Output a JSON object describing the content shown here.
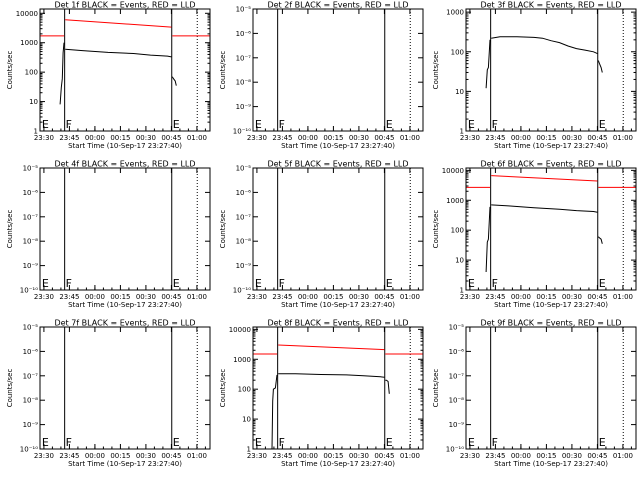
{
  "chart_data": [
    {
      "type": "line",
      "title": "Det 1f BLACK = Events, RED = LLD",
      "xlabel": "Start Time (10-Sep-17 23:27:40)",
      "ylabel": "Counts/sec",
      "x_tick_labels": [
        "23:30",
        "23:45",
        "00:00",
        "00:15",
        "00:30",
        "00:45",
        "01:00"
      ],
      "x_ticks_min": [
        2.3,
        17.3,
        32.3,
        47.3,
        62.3,
        77.3,
        92.3
      ],
      "y_scale": "log",
      "ylim": [
        1,
        14000
      ],
      "y_tick_labels": [
        "1",
        "10",
        "100",
        "1000",
        "10000"
      ],
      "y_tick_values": [
        1,
        10,
        100,
        1000,
        10000
      ],
      "xlim_min": [
        0,
        100
      ],
      "markers": [
        {
          "text": "E",
          "x_min": 0.5
        },
        {
          "text": "F",
          "x_min": 14.5
        },
        {
          "text": "E",
          "x_min": 77.5
        }
      ],
      "vlines_solid_min": [
        14.5,
        77.5
      ],
      "vlines_dotted_min": [
        92.5
      ],
      "series": [
        {
          "color": "#ff0000",
          "segments": [
            {
              "x": [
                0,
                14.2
              ],
              "y": [
                1700,
                1700
              ]
            },
            {
              "x": [
                14.8,
                77.3
              ],
              "y": [
                6000,
                3400
              ]
            },
            {
              "x": [
                77.8,
                100
              ],
              "y": [
                1700,
                1700
              ]
            }
          ]
        },
        {
          "color": "#000000",
          "segments": [
            {
              "x": [
                11.8,
                12.5,
                13.1,
                13.6,
                14.1
              ],
              "y": [
                8,
                30,
                60,
                450,
                1000
              ]
            },
            {
              "x": [
                14.8,
                25,
                40,
                55,
                65,
                75,
                77.3
              ],
              "y": [
                600,
                540,
                470,
                430,
                380,
                350,
                330
              ]
            },
            {
              "x": [
                77.8,
                78.5,
                79.5,
                80.2
              ],
              "y": [
                70,
                60,
                50,
                35
              ]
            }
          ]
        }
      ]
    },
    {
      "type": "line",
      "title": "Det 2f BLACK = Events, RED = LLD",
      "xlabel": "Start Time (10-Sep-17 23:27:40)",
      "ylabel": "Counts/sec",
      "x_tick_labels": [
        "23:30",
        "23:45",
        "00:00",
        "00:15",
        "00:30",
        "00:45",
        "01:00"
      ],
      "x_ticks_min": [
        2.3,
        17.3,
        32.3,
        47.3,
        62.3,
        77.3,
        92.3
      ],
      "y_scale": "log",
      "ylim": [
        1e-10,
        1e-05
      ],
      "y_tick_labels": [
        "10⁻¹⁰",
        "10⁻⁹",
        "10⁻⁸",
        "10⁻⁷",
        "10⁻⁶",
        "10⁻⁵"
      ],
      "y_tick_values": [
        1e-10,
        1e-09,
        1e-08,
        1e-07,
        1e-06,
        1e-05
      ],
      "xlim_min": [
        0,
        100
      ],
      "markers": [
        {
          "text": "E",
          "x_min": 0.5
        },
        {
          "text": "F",
          "x_min": 14.5
        },
        {
          "text": "E",
          "x_min": 77.5
        }
      ],
      "vlines_solid_min": [
        14.5,
        77.5
      ],
      "vlines_dotted_min": [
        92.5
      ],
      "series": []
    },
    {
      "type": "line",
      "title": "Det 3f BLACK = Events, RED = LLD",
      "xlabel": "Start Time (10-Sep-17 23:27:40)",
      "ylabel": "Counts/sec",
      "x_tick_labels": [
        "23:30",
        "23:45",
        "00:00",
        "00:15",
        "00:30",
        "00:45",
        "01:00"
      ],
      "x_ticks_min": [
        2.3,
        17.3,
        32.3,
        47.3,
        62.3,
        77.3,
        92.3
      ],
      "y_scale": "log",
      "ylim": [
        1,
        1200
      ],
      "y_tick_labels": [
        "1",
        "10",
        "100",
        "1000"
      ],
      "y_tick_values": [
        1,
        10,
        100,
        1000
      ],
      "xlim_min": [
        0,
        100
      ],
      "markers": [
        {
          "text": "E",
          "x_min": 0.5
        },
        {
          "text": "F",
          "x_min": 14.5
        },
        {
          "text": "E",
          "x_min": 77.5
        }
      ],
      "vlines_solid_min": [
        14.5,
        77.5
      ],
      "vlines_dotted_min": [
        92.5
      ],
      "series": [
        {
          "color": "#000000",
          "segments": [
            {
              "x": [
                11.8,
                12.5,
                13.2,
                14.1
              ],
              "y": [
                12,
                35,
                40,
                200
              ]
            },
            {
              "x": [
                14.8,
                20,
                30,
                40,
                45,
                50,
                55,
                60,
                65,
                70,
                75,
                77.3
              ],
              "y": [
                220,
                240,
                240,
                230,
                220,
                190,
                170,
                140,
                120,
                110,
                100,
                90
              ]
            },
            {
              "x": [
                77.8,
                78.5,
                79.5,
                80.2
              ],
              "y": [
                60,
                50,
                40,
                30
              ]
            }
          ]
        }
      ]
    },
    {
      "type": "line",
      "title": "Det 4f BLACK = Events, RED = LLD",
      "xlabel": "Start Time (10-Sep-17 23:27:40)",
      "ylabel": "Counts/sec",
      "x_tick_labels": [
        "23:30",
        "23:45",
        "00:00",
        "00:15",
        "00:30",
        "00:45",
        "01:00"
      ],
      "x_ticks_min": [
        2.3,
        17.3,
        32.3,
        47.3,
        62.3,
        77.3,
        92.3
      ],
      "y_scale": "log",
      "ylim": [
        1e-10,
        1e-05
      ],
      "y_tick_labels": [
        "10⁻¹⁰",
        "10⁻⁹",
        "10⁻⁸",
        "10⁻⁷",
        "10⁻⁶",
        "10⁻⁵"
      ],
      "y_tick_values": [
        1e-10,
        1e-09,
        1e-08,
        1e-07,
        1e-06,
        1e-05
      ],
      "xlim_min": [
        0,
        100
      ],
      "markers": [
        {
          "text": "E",
          "x_min": 0.5
        },
        {
          "text": "F",
          "x_min": 14.5
        },
        {
          "text": "E",
          "x_min": 77.5
        }
      ],
      "vlines_solid_min": [
        14.5,
        77.5
      ],
      "vlines_dotted_min": [
        92.5
      ],
      "series": []
    },
    {
      "type": "line",
      "title": "Det 5f BLACK = Events, RED = LLD",
      "xlabel": "Start Time (10-Sep-17 23:27:40)",
      "ylabel": "Counts/sec",
      "x_tick_labels": [
        "23:30",
        "23:45",
        "00:00",
        "00:15",
        "00:30",
        "00:45",
        "01:00"
      ],
      "x_ticks_min": [
        2.3,
        17.3,
        32.3,
        47.3,
        62.3,
        77.3,
        92.3
      ],
      "y_scale": "log",
      "ylim": [
        1e-10,
        1e-05
      ],
      "y_tick_labels": [
        "10⁻¹⁰",
        "10⁻⁹",
        "10⁻⁸",
        "10⁻⁷",
        "10⁻⁶",
        "10⁻⁵"
      ],
      "y_tick_values": [
        1e-10,
        1e-09,
        1e-08,
        1e-07,
        1e-06,
        1e-05
      ],
      "xlim_min": [
        0,
        100
      ],
      "markers": [
        {
          "text": "E",
          "x_min": 0.5
        },
        {
          "text": "F",
          "x_min": 14.5
        },
        {
          "text": "E",
          "x_min": 77.5
        }
      ],
      "vlines_solid_min": [
        14.5,
        77.5
      ],
      "vlines_dotted_min": [
        92.5
      ],
      "series": []
    },
    {
      "type": "line",
      "title": "Det 6f BLACK = Events, RED = LLD",
      "xlabel": "Start Time (10-Sep-17 23:27:40)",
      "ylabel": "Counts/sec",
      "x_tick_labels": [
        "23:30",
        "23:45",
        "00:00",
        "00:15",
        "00:30",
        "00:45",
        "01:00"
      ],
      "x_ticks_min": [
        2.3,
        17.3,
        32.3,
        47.3,
        62.3,
        77.3,
        92.3
      ],
      "y_scale": "log",
      "ylim": [
        1,
        12000
      ],
      "y_tick_labels": [
        "1",
        "10",
        "100",
        "1000",
        "10000"
      ],
      "y_tick_values": [
        1,
        10,
        100,
        1000,
        10000
      ],
      "xlim_min": [
        0,
        100
      ],
      "markers": [
        {
          "text": "E",
          "x_min": 0.5
        },
        {
          "text": "F",
          "x_min": 14.5
        },
        {
          "text": "E",
          "x_min": 77.5
        }
      ],
      "vlines_solid_min": [
        14.5,
        77.5
      ],
      "vlines_dotted_min": [
        92.5
      ],
      "series": [
        {
          "color": "#ff0000",
          "segments": [
            {
              "x": [
                0,
                14.2
              ],
              "y": [
                2700,
                2700
              ]
            },
            {
              "x": [
                14.8,
                77.3
              ],
              "y": [
                6700,
                4400
              ]
            },
            {
              "x": [
                77.8,
                100
              ],
              "y": [
                2700,
                2700
              ]
            }
          ]
        },
        {
          "color": "#000000",
          "segments": [
            {
              "x": [
                11.8,
                12.5,
                13.2,
                14.1
              ],
              "y": [
                4,
                40,
                50,
                600
              ]
            },
            {
              "x": [
                14.8,
                25,
                40,
                55,
                65,
                75,
                77.3
              ],
              "y": [
                700,
                650,
                560,
                500,
                450,
                420,
                400
              ]
            },
            {
              "x": [
                77.8,
                78.5,
                79.5,
                80.2
              ],
              "y": [
                60,
                55,
                50,
                35
              ]
            }
          ]
        }
      ]
    },
    {
      "type": "line",
      "title": "Det 7f BLACK = Events, RED = LLD",
      "xlabel": "Start Time (10-Sep-17 23:27:40)",
      "ylabel": "Counts/sec",
      "x_tick_labels": [
        "23:30",
        "23:45",
        "00:00",
        "00:15",
        "00:30",
        "00:45",
        "01:00"
      ],
      "x_ticks_min": [
        2.3,
        17.3,
        32.3,
        47.3,
        62.3,
        77.3,
        92.3
      ],
      "y_scale": "log",
      "ylim": [
        1e-10,
        1e-05
      ],
      "y_tick_labels": [
        "10⁻¹⁰",
        "10⁻⁹",
        "10⁻⁸",
        "10⁻⁷",
        "10⁻⁶",
        "10⁻⁵"
      ],
      "y_tick_values": [
        1e-10,
        1e-09,
        1e-08,
        1e-07,
        1e-06,
        1e-05
      ],
      "xlim_min": [
        0,
        100
      ],
      "markers": [
        {
          "text": "E",
          "x_min": 0.5
        },
        {
          "text": "F",
          "x_min": 14.5
        },
        {
          "text": "E",
          "x_min": 77.5
        }
      ],
      "vlines_solid_min": [
        14.5,
        77.5
      ],
      "vlines_dotted_min": [
        92.5
      ],
      "series": []
    },
    {
      "type": "line",
      "title": "Det 8f BLACK = Events, RED = LLD",
      "xlabel": "Start Time (10-Sep-17 23:27:40)",
      "ylabel": "Counts/sec",
      "x_tick_labels": [
        "23:30",
        "23:45",
        "00:00",
        "00:15",
        "00:30",
        "00:45",
        "01:00"
      ],
      "x_ticks_min": [
        2.3,
        17.3,
        32.3,
        47.3,
        62.3,
        77.3,
        92.3
      ],
      "y_scale": "log",
      "ylim": [
        1,
        12000
      ],
      "y_tick_labels": [
        "1",
        "10",
        "100",
        "1000",
        "10000"
      ],
      "y_tick_values": [
        1,
        10,
        100,
        1000,
        10000
      ],
      "xlim_min": [
        0,
        100
      ],
      "markers": [
        {
          "text": "E",
          "x_min": 0.5
        },
        {
          "text": "F",
          "x_min": 14.5
        },
        {
          "text": "E",
          "x_min": 77.5
        }
      ],
      "vlines_solid_min": [
        14.5,
        77.5
      ],
      "vlines_dotted_min": [
        92.5
      ],
      "series": [
        {
          "color": "#ff0000",
          "segments": [
            {
              "x": [
                0,
                14.2
              ],
              "y": [
                1500,
                1500
              ]
            },
            {
              "x": [
                14.8,
                77.3
              ],
              "y": [
                3000,
                2100
              ]
            },
            {
              "x": [
                77.8,
                100
              ],
              "y": [
                1500,
                1500
              ]
            }
          ]
        },
        {
          "color": "#000000",
          "segments": [
            {
              "x": [
                11.2,
                11.6,
                12.0,
                13.2,
                14.1
              ],
              "y": [
                1,
                40,
                100,
                110,
                300
              ]
            },
            {
              "x": [
                14.8,
                25,
                40,
                55,
                65,
                75,
                77.3
              ],
              "y": [
                330,
                330,
                310,
                300,
                280,
                260,
                250
              ]
            },
            {
              "x": [
                77.8,
                78.5,
                79.5,
                80.2
              ],
              "y": [
                200,
                200,
                180,
                70
              ]
            }
          ]
        }
      ]
    },
    {
      "type": "line",
      "title": "Det 9f BLACK = Events, RED = LLD",
      "xlabel": "Start Time (10-Sep-17 23:27:40)",
      "ylabel": "Counts/sec",
      "x_tick_labels": [
        "23:30",
        "23:45",
        "00:00",
        "00:15",
        "00:30",
        "00:45",
        "01:00"
      ],
      "x_ticks_min": [
        2.3,
        17.3,
        32.3,
        47.3,
        62.3,
        77.3,
        92.3
      ],
      "y_scale": "log",
      "ylim": [
        1e-10,
        1e-05
      ],
      "y_tick_labels": [
        "10⁻¹⁰",
        "10⁻⁹",
        "10⁻⁸",
        "10⁻⁷",
        "10⁻⁶",
        "10⁻⁵"
      ],
      "y_tick_values": [
        1e-10,
        1e-09,
        1e-08,
        1e-07,
        1e-06,
        1e-05
      ],
      "xlim_min": [
        0,
        100
      ],
      "markers": [
        {
          "text": "E",
          "x_min": 0.5
        },
        {
          "text": "F",
          "x_min": 14.5
        },
        {
          "text": "E",
          "x_min": 77.5
        }
      ],
      "vlines_solid_min": [
        14.5,
        77.5
      ],
      "vlines_dotted_min": [
        92.5
      ],
      "series": []
    }
  ]
}
